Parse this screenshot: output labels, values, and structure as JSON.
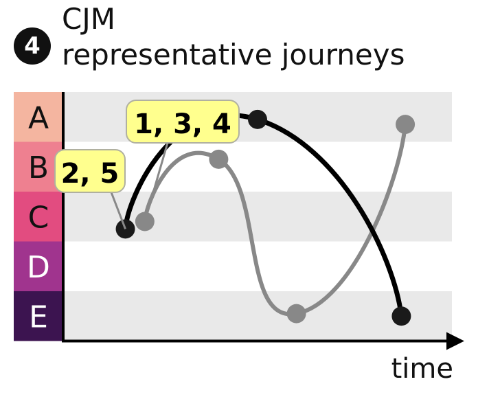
{
  "header": {
    "step_number": "4",
    "title_line1": "CJM",
    "title_line2": "representative journeys"
  },
  "chart_data": {
    "type": "line",
    "categories": [
      {
        "label": "A",
        "color": "#F4B5A0",
        "label_color": "#111111"
      },
      {
        "label": "B",
        "color": "#EE8090",
        "label_color": "#111111"
      },
      {
        "label": "C",
        "color": "#E24C80",
        "label_color": "#111111"
      },
      {
        "label": "D",
        "color": "#A0348E",
        "label_color": "#ffffff"
      },
      {
        "label": "E",
        "color": "#3C1450",
        "label_color": "#ffffff"
      }
    ],
    "xlabel": "time",
    "series": [
      {
        "color": "#888888",
        "callout": "1, 3, 4",
        "points": [
          {
            "t": 0.21,
            "level": 1.9
          },
          {
            "t": 0.4,
            "level": 3.15
          },
          {
            "t": 0.6,
            "level": 0.05
          },
          {
            "t": 0.88,
            "level": 3.85
          }
        ]
      },
      {
        "color": "#000000",
        "callout": "2, 5",
        "points": [
          {
            "t": 0.16,
            "level": 1.75
          },
          {
            "t": 0.5,
            "level": 3.95
          },
          {
            "t": 0.87,
            "level": 0.0
          }
        ]
      }
    ]
  }
}
